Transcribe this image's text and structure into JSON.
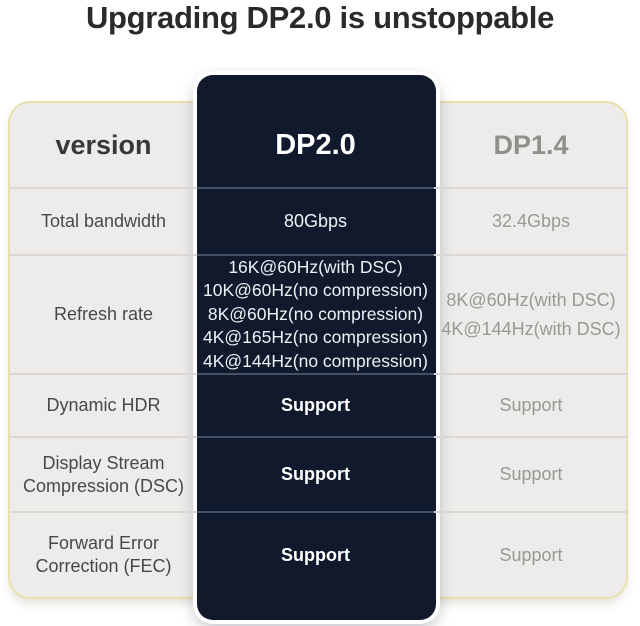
{
  "title": "Upgrading DP2.0 is unstoppable",
  "colors": {
    "highlight_column_bg": "#101a2c",
    "card_bg": "#edecea",
    "card_border": "#e7e1ae",
    "highlight_text": "#ffffff",
    "muted_column_text": "#9a9894",
    "label_text": "#4a4846",
    "title_text": "#2b2a29"
  },
  "chart_data": {
    "type": "table",
    "title": "Upgrading DP2.0 is unstoppable",
    "columns": [
      "version",
      "DP2.0",
      "DP1.4"
    ],
    "highlight_column": "DP2.0",
    "rows": [
      {
        "label": "Total bandwidth",
        "dp20": [
          "80Gbps"
        ],
        "dp14": [
          "32.4Gbps"
        ]
      },
      {
        "label": "Refresh rate",
        "dp20": [
          "16K@60Hz(with DSC)",
          "10K@60Hz(no compression)",
          "8K@60Hz(no compression)",
          "4K@165Hz(no compression)",
          "4K@144Hz(no compression)"
        ],
        "dp14": [
          "8K@60Hz(with DSC)",
          "4K@144Hz(with DSC)"
        ]
      },
      {
        "label": "Dynamic HDR",
        "dp20": [
          "Support"
        ],
        "dp14": [
          "Support"
        ]
      },
      {
        "label": "Display Stream Compression (DSC)",
        "dp20": [
          "Support"
        ],
        "dp14": [
          "Support"
        ]
      },
      {
        "label": "Forward Error Correction (FEC)",
        "dp20": [
          "Support"
        ],
        "dp14": [
          "Support"
        ]
      }
    ]
  }
}
